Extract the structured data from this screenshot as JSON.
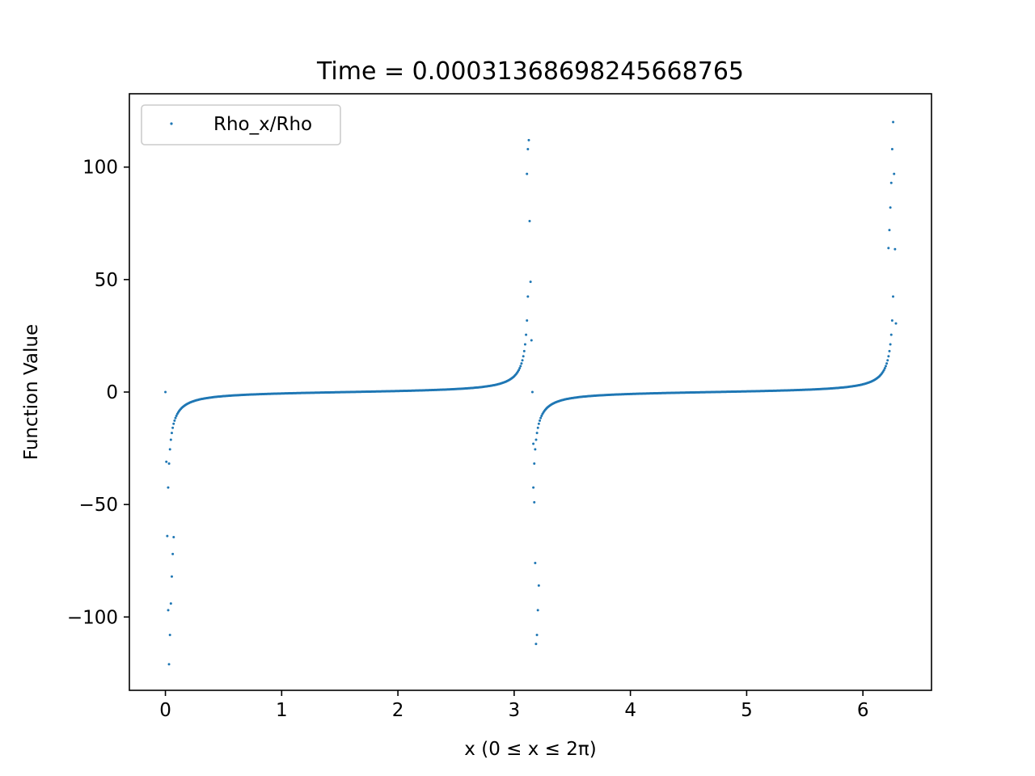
{
  "chart_data": {
    "type": "scatter",
    "title": "Time = 0.00031368698245668765",
    "xlabel": "x (0 ≤ x ≤ 2π)",
    "ylabel": "Function Value",
    "xlim": [
      -0.31,
      6.59
    ],
    "ylim": [
      -132.6,
      132.6
    ],
    "x_ticks": [
      0,
      1,
      2,
      3,
      4,
      5,
      6
    ],
    "x_tick_labels": [
      "0",
      "1",
      "2",
      "3",
      "4",
      "5",
      "6"
    ],
    "y_ticks": [
      -100,
      -50,
      0,
      50,
      100
    ],
    "y_tick_labels": [
      "−100",
      "−50",
      "0",
      "50",
      "100"
    ],
    "grid": false,
    "legend": {
      "position": "top-left",
      "entries": [
        "Rho_x/Rho"
      ]
    },
    "colors": {
      "series": "#1f77b4"
    },
    "series": [
      {
        "name": "Rho_x/Rho",
        "function": "-cot(x), sampled at 800 evenly spaced points on [0, 2π); singular samples near x=0, π, 2π scatter within ±121",
        "outliers": [
          [
            0.0,
            0
          ],
          [
            0.008,
            -31
          ],
          [
            0.016,
            -64
          ],
          [
            0.024,
            -97
          ],
          [
            0.031,
            -121
          ],
          [
            0.039,
            -108
          ],
          [
            0.047,
            -94
          ],
          [
            0.055,
            -82
          ],
          [
            0.063,
            -72
          ],
          [
            0.071,
            -64.5
          ],
          [
            3.11,
            97
          ],
          [
            3.118,
            108
          ],
          [
            3.126,
            112
          ],
          [
            3.133,
            76
          ],
          [
            3.141,
            49
          ],
          [
            3.149,
            23
          ],
          [
            3.157,
            0
          ],
          [
            3.165,
            -23
          ],
          [
            3.173,
            -49
          ],
          [
            3.181,
            -76
          ],
          [
            3.188,
            -112
          ],
          [
            3.196,
            -108
          ],
          [
            3.204,
            -97
          ],
          [
            3.212,
            -86
          ],
          [
            6.22,
            64
          ],
          [
            6.228,
            72
          ],
          [
            6.236,
            82
          ],
          [
            6.244,
            93
          ],
          [
            6.252,
            108
          ],
          [
            6.26,
            120
          ],
          [
            6.268,
            97
          ],
          [
            6.276,
            63.5
          ],
          [
            6.284,
            30.5
          ]
        ]
      }
    ]
  }
}
